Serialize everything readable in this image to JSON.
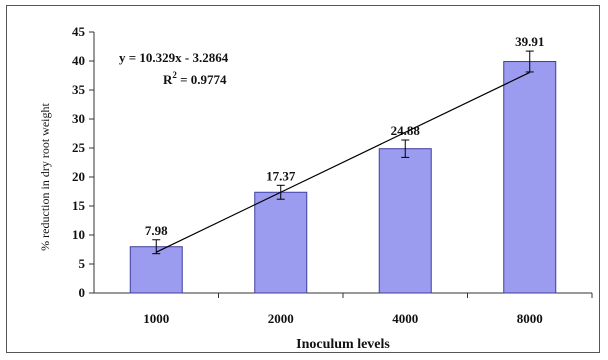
{
  "chart_data": {
    "type": "bar",
    "categories": [
      "1000",
      "2000",
      "4000",
      "8000"
    ],
    "values": [
      7.98,
      17.37,
      24.88,
      39.91
    ],
    "data_labels": [
      "7.98",
      "17.37",
      "24.88",
      "39.91"
    ],
    "error_bars": [
      1.2,
      1.2,
      1.5,
      1.8
    ],
    "xlabel": "Inoculum levels",
    "ylabel": "% reduction in dry root weight",
    "ylim": [
      0,
      45
    ],
    "yticks": [
      0,
      5,
      10,
      15,
      20,
      25,
      30,
      35,
      40,
      45
    ],
    "trendline": {
      "type": "linear",
      "slope": 10.329,
      "intercept": -3.2864,
      "equation": "y = 10.329x - 3.2864",
      "r_squared_label": "R",
      "r_squared_sup": "2",
      "r_squared_value": " = 0.9774"
    },
    "bar_color": "#9b9bf0",
    "bar_stroke": "#3f3f9f",
    "grid": false,
    "legend": "none"
  }
}
